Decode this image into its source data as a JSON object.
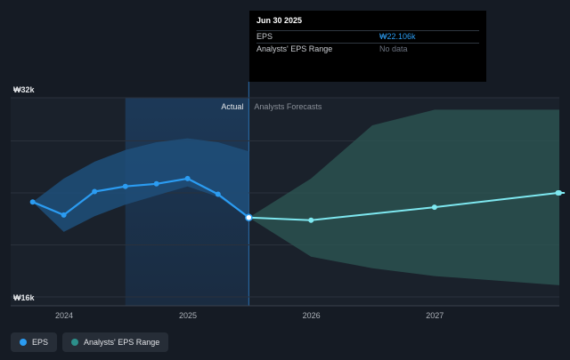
{
  "tooltip": {
    "date": "Jun 30 2025",
    "eps_label": "EPS",
    "eps_value": "₩22.106k",
    "range_label": "Analysts' EPS Range",
    "range_value": "No data"
  },
  "legend": {
    "eps_label": "EPS",
    "range_label": "Analysts' EPS Range"
  },
  "colors": {
    "background": "#151b24",
    "eps_line": "#2b9cf2",
    "forecast_line": "#7ee8f0",
    "actual_band": "#1e4f7a",
    "forecast_band": "#2c5552"
  },
  "chart_data": {
    "type": "line",
    "title": "",
    "xlabel": "",
    "ylabel": "",
    "ylim": [
      16000,
      32000
    ],
    "ytick_labels": [
      "₩32k",
      "₩16k"
    ],
    "xtick_labels": [
      "2024",
      "2025",
      "2026",
      "2027"
    ],
    "section_labels": {
      "actual": "Actual",
      "forecast": "Analysts Forecasts"
    },
    "divider_date": "2025-06-30",
    "series": [
      {
        "name": "EPS",
        "points": [
          {
            "date": "2023-09-30",
            "value": 23300
          },
          {
            "date": "2023-12-31",
            "value": 22300
          },
          {
            "date": "2024-03-31",
            "value": 24100
          },
          {
            "date": "2024-06-30",
            "value": 24500
          },
          {
            "date": "2024-09-30",
            "value": 24700
          },
          {
            "date": "2024-12-31",
            "value": 25100
          },
          {
            "date": "2025-03-31",
            "value": 23900
          },
          {
            "date": "2025-06-30",
            "value": 22106
          }
        ]
      },
      {
        "name": "EPS forecast",
        "points": [
          {
            "date": "2025-06-30",
            "value": 22106
          },
          {
            "date": "2025-12-31",
            "value": 21900
          },
          {
            "date": "2026-12-31",
            "value": 22900
          },
          {
            "date": "2027-12-31",
            "value": 24000
          }
        ]
      }
    ],
    "actual_band": {
      "dates": [
        "2023-09-30",
        "2023-12-31",
        "2024-03-31",
        "2024-06-30",
        "2024-09-30",
        "2024-12-31",
        "2025-03-31",
        "2025-06-30"
      ],
      "upper": [
        23300,
        25100,
        26400,
        27300,
        27900,
        28200,
        27900,
        27200
      ],
      "lower": [
        23300,
        21000,
        22200,
        23100,
        23800,
        24500,
        23700,
        22106
      ]
    },
    "forecast_band": {
      "dates": [
        "2025-06-30",
        "2025-12-31",
        "2026-06-30",
        "2027-01-01",
        "2027-12-31"
      ],
      "upper": [
        22106,
        25100,
        29200,
        30400,
        30400
      ],
      "lower": [
        22106,
        19100,
        18200,
        17600,
        16900
      ]
    }
  }
}
